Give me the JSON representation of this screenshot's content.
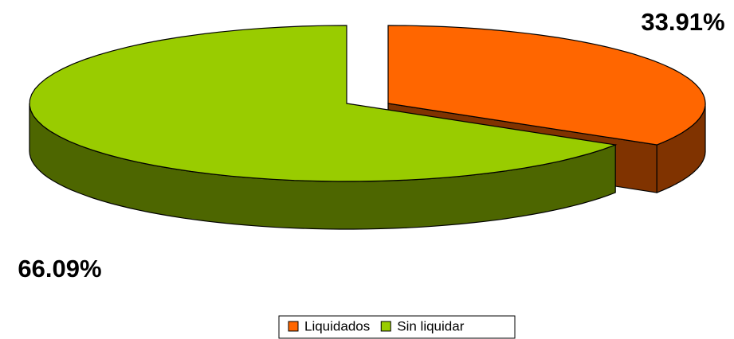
{
  "chart_data": {
    "type": "pie",
    "categories": [
      "Liquidados",
      "Sin liquidar"
    ],
    "values": [
      33.91,
      66.09
    ],
    "value_labels": [
      "33.91%",
      "66.09%"
    ],
    "colors": [
      "#ff6600",
      "#99cc00"
    ],
    "side_colors": [
      "#803300",
      "#4d6600"
    ],
    "legend": "bottom"
  }
}
